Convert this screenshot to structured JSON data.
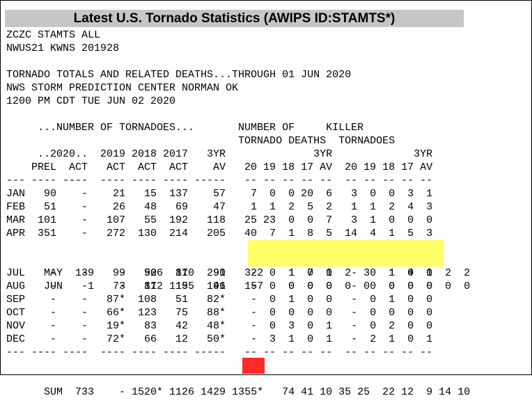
{
  "page": {
    "title": "Latest U.S. Tornado Statistics (AWIPS ID:STAMTS*)"
  },
  "report": {
    "header_lines": [
      "ZCZC STAMTS ALL",
      "NWUS21 KWNS 201928",
      "",
      "TORNADO TOTALS AND RELATED DEATHS...THROUGH 01 JUN 2020",
      "NWS STORM PREDICTION CENTER NORMAN OK",
      "1200 PM CDT TUE JUN 02 2020",
      ""
    ],
    "column_header_lines": [
      "     ...NUMBER OF TORNADOES...       NUMBER OF     KILLER",
      "                                     TORNADO DEATHS  TORNADOES",
      "     ..2020..  2019 2018 2017   3YR              3YR             3YR",
      "    PREL  ACT   ACT  ACT  ACT    AV   20 19 18 17 AV  20 19 18 17 AV",
      "--- ---- ----  ---- ---- ---- -----   -- -- -- -- --  -- -- -- -- --"
    ],
    "data_lines": [
      "JAN   90    -    21   15  137    57    7  0  0 20  6   3  0  0  3  1",
      "FEB   51    -    26   48   69    47    1  1  2  5  2   1  1  2  4  3",
      "MAR  101    -   107   55  192   118   25 23  0  0  7   3  1  0  0  0",
      "APR  351    -   272  130  214   205   40  7  1  8  5  14  4  1  5  3",
      "MAY  139    -   506  170  291   322    1  7  1  2  3   1  4  1  2  2",
      "JUN    1    -   172  155  146   157    0  0  0  0  0   0  0  0  0  0",
      "JUL    -    -    99   92   81    90    -  0  1  0  0   -  0  1  0  0",
      "AUG    -    -    73   81  119    91    -  0  0  0  0   -  0  0  0  0",
      "SEP    -    -   87*  108   51   82*    -  0  1  0  0   -  0  1  0  0",
      "OCT    -    -   66*  123   75   88*    -  0  0  0  0   -  0  0  0  0",
      "NOV    -    -   19*   83   42   48*    -  0  3  0  1   -  0  2  0  0",
      "DEC    -    -   72*   66   12   50*    -  3  1  0  1   -  2  1  0  1",
      "--- ---- ----  ---- ---- ---- -----   -- -- -- -- --  -- -- -- -- --",
      "SUM  733    - 1520* 1126 1429 1355*   74 41 10 35 25  22 12  9 14 10"
    ],
    "highlight_color": "#ffff66",
    "alert_color": "#ff2a2a"
  }
}
